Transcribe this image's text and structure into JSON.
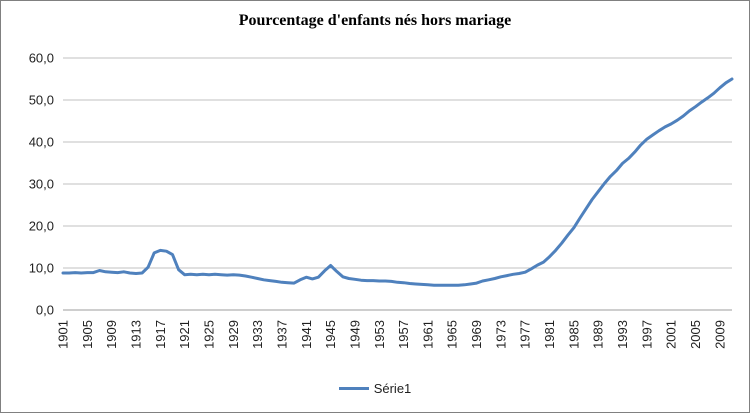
{
  "chart_data": {
    "type": "line",
    "title": "Pourcentage d'enfants nés hors mariage",
    "legend_label": "Série1",
    "legend_position": "bottom",
    "grid": "horizontal",
    "ylim": [
      0,
      60
    ],
    "y_ticks": [
      "60,0",
      "50,0",
      "40,0",
      "30,0",
      "20,0",
      "10,0",
      "0,0"
    ],
    "x_tick_interval": 4,
    "x_tick_labels": [
      "1901",
      "1905",
      "1909",
      "1913",
      "1917",
      "1921",
      "1925",
      "1929",
      "1933",
      "1937",
      "1941",
      "1945",
      "1949",
      "1953",
      "1957",
      "1961",
      "1965",
      "1969",
      "1973",
      "1977",
      "1981",
      "1985",
      "1989",
      "1993",
      "1997",
      "2001",
      "2005",
      "2009"
    ],
    "colors": {
      "line": "#4F81BD",
      "gridline": "#C0C0C0",
      "axis_line": "#9E9E9E",
      "text": "#1F1F1F",
      "frame_border": "#808080",
      "background": "#FFFFFF"
    },
    "series": [
      {
        "name": "Série1",
        "years": [
          1901,
          1902,
          1903,
          1904,
          1905,
          1906,
          1907,
          1908,
          1909,
          1910,
          1911,
          1912,
          1913,
          1914,
          1915,
          1916,
          1917,
          1918,
          1919,
          1920,
          1921,
          1922,
          1923,
          1924,
          1925,
          1926,
          1927,
          1928,
          1929,
          1930,
          1931,
          1932,
          1933,
          1934,
          1935,
          1936,
          1937,
          1938,
          1939,
          1940,
          1941,
          1942,
          1943,
          1944,
          1945,
          1946,
          1947,
          1948,
          1949,
          1950,
          1951,
          1952,
          1953,
          1954,
          1955,
          1956,
          1957,
          1958,
          1959,
          1960,
          1961,
          1962,
          1963,
          1964,
          1965,
          1966,
          1967,
          1968,
          1969,
          1970,
          1971,
          1972,
          1973,
          1974,
          1975,
          1976,
          1977,
          1978,
          1979,
          1980,
          1981,
          1982,
          1983,
          1984,
          1985,
          1986,
          1987,
          1988,
          1989,
          1990,
          1991,
          1992,
          1993,
          1994,
          1995,
          1996,
          1997,
          1998,
          1999,
          2000,
          2001,
          2002,
          2003,
          2004,
          2005,
          2006,
          2007,
          2008,
          2009,
          2010,
          2011
        ],
        "values": [
          8.8,
          8.8,
          8.9,
          8.8,
          8.9,
          8.9,
          9.4,
          9.1,
          9.0,
          8.9,
          9.1,
          8.8,
          8.7,
          8.8,
          10.2,
          13.6,
          14.2,
          14.0,
          13.2,
          9.6,
          8.4,
          8.5,
          8.4,
          8.5,
          8.4,
          8.5,
          8.4,
          8.3,
          8.4,
          8.3,
          8.1,
          7.8,
          7.5,
          7.2,
          7.0,
          6.8,
          6.6,
          6.5,
          6.4,
          7.2,
          7.8,
          7.4,
          7.8,
          9.3,
          10.6,
          9.2,
          7.9,
          7.5,
          7.3,
          7.1,
          7.0,
          7.0,
          6.9,
          6.9,
          6.8,
          6.6,
          6.5,
          6.3,
          6.2,
          6.1,
          6.0,
          5.9,
          5.9,
          5.9,
          5.9,
          5.9,
          6.0,
          6.2,
          6.4,
          6.9,
          7.2,
          7.5,
          7.9,
          8.2,
          8.5,
          8.7,
          9.0,
          9.8,
          10.7,
          11.4,
          12.7,
          14.2,
          15.9,
          17.8,
          19.6,
          21.9,
          24.1,
          26.3,
          28.2,
          30.1,
          31.8,
          33.2,
          34.9,
          36.1,
          37.6,
          39.3,
          40.7,
          41.7,
          42.7,
          43.6,
          44.3,
          45.2,
          46.2,
          47.4,
          48.4,
          49.5,
          50.5,
          51.6,
          52.9,
          54.1,
          55.0
        ]
      }
    ]
  }
}
